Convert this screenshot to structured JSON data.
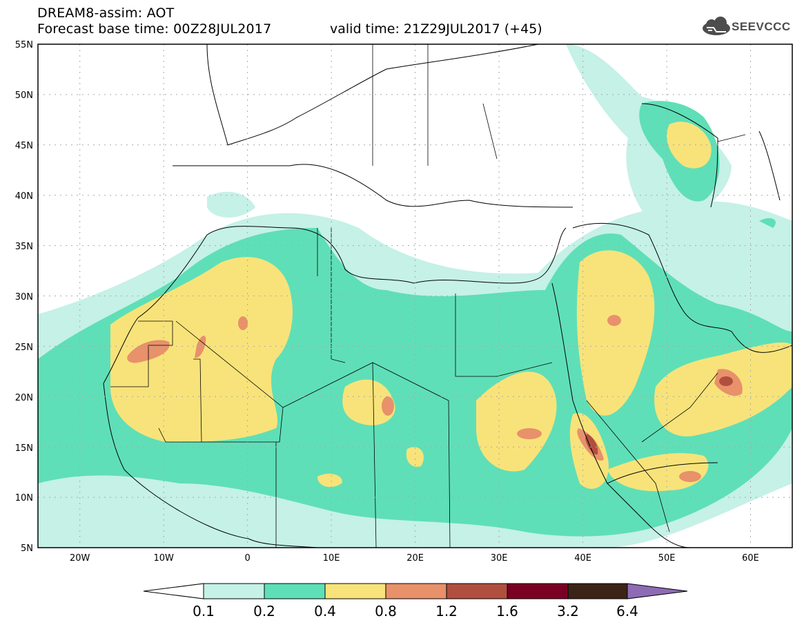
{
  "header": {
    "product": "DREAM8-assim: AOT",
    "base_time": "Forecast base time: 00Z28JUL2017",
    "valid_time": "valid time: 21Z29JUL2017 (+45)",
    "logo_text": "SEEVCCC"
  },
  "map": {
    "lon_range": [
      -25,
      65
    ],
    "lat_range": [
      5,
      55
    ],
    "lat_labels": [
      "55N",
      "50N",
      "45N",
      "40N",
      "35N",
      "30N",
      "25N",
      "20N",
      "15N",
      "10N",
      "5N"
    ],
    "lon_labels": [
      "20W",
      "10W",
      "0",
      "10E",
      "20E",
      "30E",
      "40E",
      "50E",
      "60E"
    ],
    "gridlines": "dotted"
  },
  "colorbar": {
    "colors": {
      "under": "#ffffff",
      "c1": "#c5f1e7",
      "c2": "#5fdfb7",
      "c3": "#f8e37a",
      "c4": "#e8916a",
      "c5": "#b14f3f",
      "c6": "#7a0023",
      "c7": "#3b2417",
      "over": "#8d6bb5"
    },
    "labels": [
      "0.1",
      "0.2",
      "0.4",
      "0.8",
      "1.2",
      "1.6",
      "3.2",
      "6.4"
    ]
  }
}
